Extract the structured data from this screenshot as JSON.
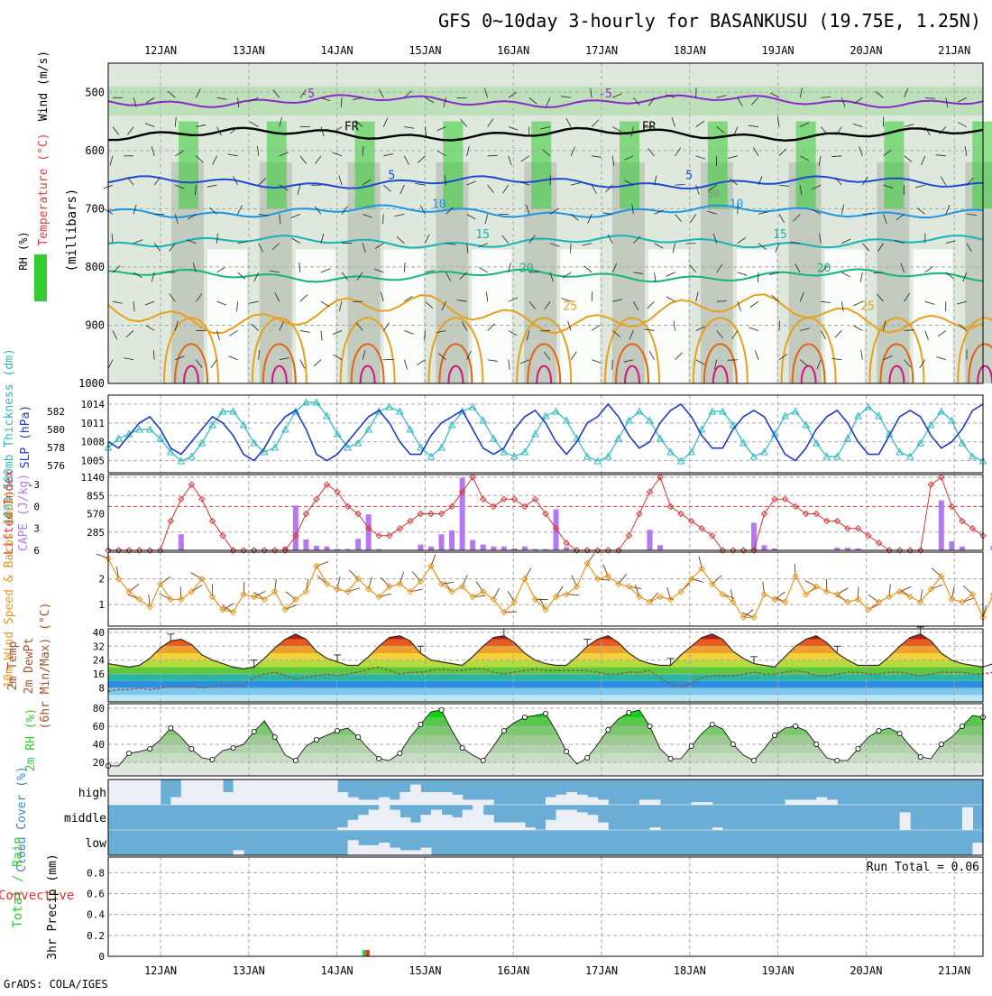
{
  "chart_data": {
    "type": "meteogram",
    "title": "GFS 0~10day 3-hourly for BASANKUSU (19.75E, 1.25N)",
    "credit": "GrADS: COLA/IGES",
    "dates": [
      "12JAN",
      "13JAN",
      "14JAN",
      "15JAN",
      "16JAN",
      "17JAN",
      "18JAN",
      "19JAN",
      "20JAN",
      "21JAN"
    ],
    "colors": {
      "temp_axis": "#e03c3c",
      "rh_green": "#33cc33",
      "purple": "#8c28c8",
      "blue_5": "#1e4ad2",
      "blue_10": "#1e96e6",
      "cyan_15": "#14b4b4",
      "green_20": "#14b482",
      "orange_25": "#e6a01e",
      "cape": "#b478f0",
      "li": "#dc3232",
      "wind10": "#e6961e",
      "cloud_bg": "#6aaed6",
      "cloud_cover": "#ebeff5"
    },
    "panels": [
      {
        "id": "upper-air",
        "labels": [
          "RH (%)",
          "Temperature (°C)",
          "Wind (m/s)",
          "(millibars)"
        ],
        "pressure_ticks": [
          500,
          600,
          700,
          800,
          900,
          1000
        ],
        "ylim": [
          450,
          1000
        ],
        "temperature_contours": [
          {
            "label": "-5",
            "level": 515
          },
          {
            "label": "FR",
            "level": 572
          },
          {
            "label": "5",
            "level": 655
          },
          {
            "label": "10",
            "level": 705
          },
          {
            "label": "15",
            "level": 757
          },
          {
            "label": "20",
            "level": 815
          },
          {
            "label": "25",
            "level": 880
          }
        ],
        "rh_contour_labels": [
          "50"
        ]
      },
      {
        "id": "slp-thickness",
        "labels": [
          "1000-500mb Thickness (dm)",
          "SLP (hPa)"
        ],
        "thickness_ticks": [
          576,
          578,
          580,
          582
        ],
        "slp_ticks": [
          1005,
          1008,
          1011,
          1014
        ],
        "slp": [
          1008,
          1007,
          1009,
          1011,
          1012,
          1010,
          1007,
          1006,
          1008,
          1010,
          1012,
          1011,
          1009,
          1006,
          1005,
          1007,
          1010,
          1012,
          1013,
          1010,
          1006,
          1005,
          1006,
          1008,
          1010,
          1012,
          1013,
          1011,
          1008,
          1006,
          1006,
          1009,
          1011,
          1012,
          1013,
          1010,
          1007,
          1006,
          1007,
          1010,
          1012,
          1013,
          1011,
          1008,
          1006,
          1008,
          1011,
          1012,
          1014,
          1012,
          1009,
          1007,
          1008,
          1011,
          1013,
          1014,
          1012,
          1009,
          1007,
          1007,
          1010,
          1012,
          1013,
          1012,
          1009,
          1006,
          1005,
          1007,
          1010,
          1012,
          1013,
          1011,
          1008,
          1006,
          1006,
          1009,
          1012,
          1013,
          1012,
          1009,
          1007,
          1008,
          1010,
          1013,
          1014
        ],
        "thickness": [
          578,
          579,
          579.5,
          580,
          580,
          579,
          577.5,
          576.5,
          577,
          578.5,
          580.5,
          582,
          582,
          580.5,
          578.5,
          577.5,
          578,
          580,
          582,
          583,
          583,
          581.5,
          579.5,
          578,
          578.5,
          580,
          582,
          582.5,
          582,
          580,
          578,
          577,
          578,
          580.5,
          582,
          582.5,
          581,
          579,
          577.5,
          577,
          577.5,
          579.5,
          581.5,
          582,
          581,
          579,
          577,
          576.5,
          577,
          579,
          581,
          582,
          581,
          579,
          577.5,
          576.5,
          577.5,
          580,
          582,
          582,
          580.5,
          578.5,
          577,
          577.5,
          579.5,
          581.5,
          582,
          580.5,
          578.5,
          577,
          577,
          579,
          581.5,
          582.5,
          581.5,
          579.5,
          577.5,
          577,
          578.5,
          580.5,
          582,
          581,
          578.5,
          577,
          576.5
        ]
      },
      {
        "id": "cape-li",
        "labels": [
          "Lifted Index",
          "CAPE (J/kg)"
        ],
        "li_ticks": [
          -3,
          0,
          3,
          6
        ],
        "cape_ticks": [
          285,
          570,
          855,
          1140
        ],
        "li": [
          6,
          6,
          6,
          6,
          6,
          6,
          2,
          -1,
          -3,
          -1,
          2,
          4,
          6,
          6,
          6,
          6,
          6,
          6,
          4,
          1,
          -1,
          -3,
          -2,
          0,
          1,
          3,
          4,
          4,
          3,
          2,
          1,
          1,
          1,
          0,
          -2,
          -4,
          -1,
          0,
          -1,
          -1,
          0,
          -1,
          1,
          3,
          5,
          6,
          6,
          6,
          6,
          6,
          4,
          1,
          -2,
          -4,
          0,
          1,
          2,
          3,
          4,
          6,
          6,
          6,
          6,
          1,
          -1,
          -1,
          0,
          1,
          1,
          2,
          2,
          3,
          3,
          4,
          5,
          6,
          6,
          6,
          6,
          -3,
          -4,
          0,
          2,
          3,
          4
        ],
        "cape": [
          0,
          0,
          0,
          0,
          0,
          0,
          0,
          250,
          0,
          0,
          0,
          0,
          0,
          0,
          0,
          0,
          0,
          60,
          700,
          170,
          70,
          60,
          20,
          20,
          180,
          560,
          20,
          0,
          0,
          0,
          90,
          60,
          250,
          310,
          1130,
          160,
          90,
          60,
          60,
          30,
          60,
          20,
          20,
          640,
          50,
          0,
          0,
          0,
          0,
          0,
          0,
          0,
          320,
          80,
          0,
          0,
          0,
          0,
          0,
          0,
          0,
          0,
          430,
          80,
          30,
          0,
          0,
          0,
          0,
          0,
          40,
          40,
          30,
          0,
          0,
          0,
          0,
          0,
          0,
          0,
          780,
          140,
          60,
          0,
          0,
          70
        ]
      },
      {
        "id": "wind10m",
        "labels": [
          "10m Wind Speed & Barbs (m/s)"
        ],
        "ticks": [
          1,
          2
        ],
        "speed": [
          2.8,
          2.0,
          1.5,
          1.2,
          0.9,
          1.8,
          1.2,
          1.2,
          1.5,
          2.0,
          1.3,
          0.8,
          0.7,
          1.4,
          1.3,
          1.2,
          1.5,
          0.8,
          1.2,
          1.5,
          2.5,
          1.8,
          1.6,
          1.5,
          2.0,
          1.6,
          1.3,
          1.7,
          1.8,
          1.5,
          1.9,
          2.5,
          1.8,
          1.5,
          1.7,
          1.3,
          1.5,
          1.2,
          0.7,
          1.1,
          2.0,
          1.2,
          0.8,
          1.3,
          1.4,
          1.7,
          2.6,
          2.0,
          2.1,
          1.8,
          1.7,
          1.3,
          1.1,
          1.3,
          1.2,
          1.5,
          2.0,
          2.4,
          1.8,
          1.4,
          1.1,
          0.5,
          0.5,
          1.4,
          1.2,
          1.1,
          2.1,
          1.4,
          1.7,
          1.5,
          1.4,
          1.1,
          1.2,
          0.8,
          1.1,
          1.3,
          1.5,
          1.3,
          1.1,
          1.6,
          2.1,
          1.2,
          1.1,
          1.4,
          0.5,
          1.4,
          1.1,
          1.5,
          1.3,
          1.2,
          1.0,
          1.6,
          1.3,
          1.2
        ]
      },
      {
        "id": "temp2m",
        "labels": [
          "2m Temp",
          "2m DewPt",
          "(6hr Min/Max) (°C)"
        ],
        "ticks": [
          8,
          16,
          24,
          32,
          40
        ],
        "ylim": [
          0,
          42
        ],
        "temp": [
          22,
          21,
          20,
          21,
          25,
          31,
          35,
          36,
          33,
          27,
          24,
          22,
          20,
          19,
          20,
          25,
          31,
          36,
          39,
          36,
          29,
          25,
          23,
          21,
          21,
          26,
          32,
          37,
          38,
          35,
          28,
          24,
          23,
          22,
          21,
          26,
          32,
          37,
          38,
          34,
          28,
          24,
          22,
          21,
          21,
          26,
          32,
          36,
          38,
          34,
          28,
          24,
          22,
          21,
          21,
          27,
          32,
          37,
          39,
          36,
          29,
          25,
          22,
          21,
          20,
          26,
          32,
          36,
          38,
          34,
          28,
          24,
          21,
          21,
          21,
          26,
          32,
          37,
          39,
          35,
          28,
          24,
          22,
          21,
          20,
          22
        ],
        "dewpt": [
          6,
          7,
          7,
          8,
          7,
          8,
          9,
          9,
          9,
          8,
          9,
          10,
          9,
          10,
          14,
          16,
          17,
          15,
          13,
          14,
          15,
          16,
          15,
          16,
          17,
          19,
          20,
          18,
          16,
          17,
          17,
          18,
          19,
          18,
          18,
          19,
          19,
          17,
          16,
          17,
          18,
          19,
          18,
          18,
          18,
          18,
          18,
          17,
          16,
          16,
          17,
          17,
          18,
          14,
          10,
          9,
          11,
          14,
          15,
          15,
          15,
          16,
          17,
          16,
          16,
          17,
          18,
          17,
          15,
          15,
          16,
          17,
          17,
          16,
          16,
          17,
          17,
          16,
          15,
          16,
          17,
          17,
          17,
          16,
          16,
          17
        ]
      },
      {
        "id": "rh2m",
        "labels": [
          "2m RH (%)"
        ],
        "ticks": [
          20,
          40,
          60,
          80
        ],
        "rh": [
          16,
          16,
          30,
          32,
          35,
          45,
          58,
          48,
          35,
          25,
          23,
          33,
          36,
          40,
          54,
          66,
          48,
          28,
          22,
          38,
          45,
          50,
          55,
          58,
          48,
          35,
          24,
          22,
          30,
          48,
          62,
          76,
          78,
          55,
          36,
          28,
          22,
          38,
          55,
          64,
          70,
          72,
          74,
          55,
          32,
          18,
          25,
          40,
          56,
          68,
          75,
          78,
          60,
          35,
          24,
          24,
          38,
          52,
          62,
          57,
          40,
          28,
          22,
          35,
          50,
          58,
          60,
          55,
          40,
          25,
          22,
          22,
          35,
          48,
          55,
          58,
          52,
          38,
          26,
          24,
          40,
          48,
          60,
          72,
          70
        ]
      },
      {
        "id": "cloud",
        "labels": [
          "Cloud Cover (%)"
        ],
        "layers": [
          "high",
          "middle",
          "low"
        ]
      },
      {
        "id": "precip",
        "labels": [
          "Total / Rain",
          "Convective",
          "3hr Precip (mm)"
        ],
        "ticks": [
          0,
          0.2,
          0.4,
          0.6,
          0.8
        ],
        "run_total": "Run Total = 0.06",
        "bars": [
          {
            "date_offset": 2.33,
            "total": 0.06,
            "convective": 0.06
          }
        ]
      }
    ]
  }
}
